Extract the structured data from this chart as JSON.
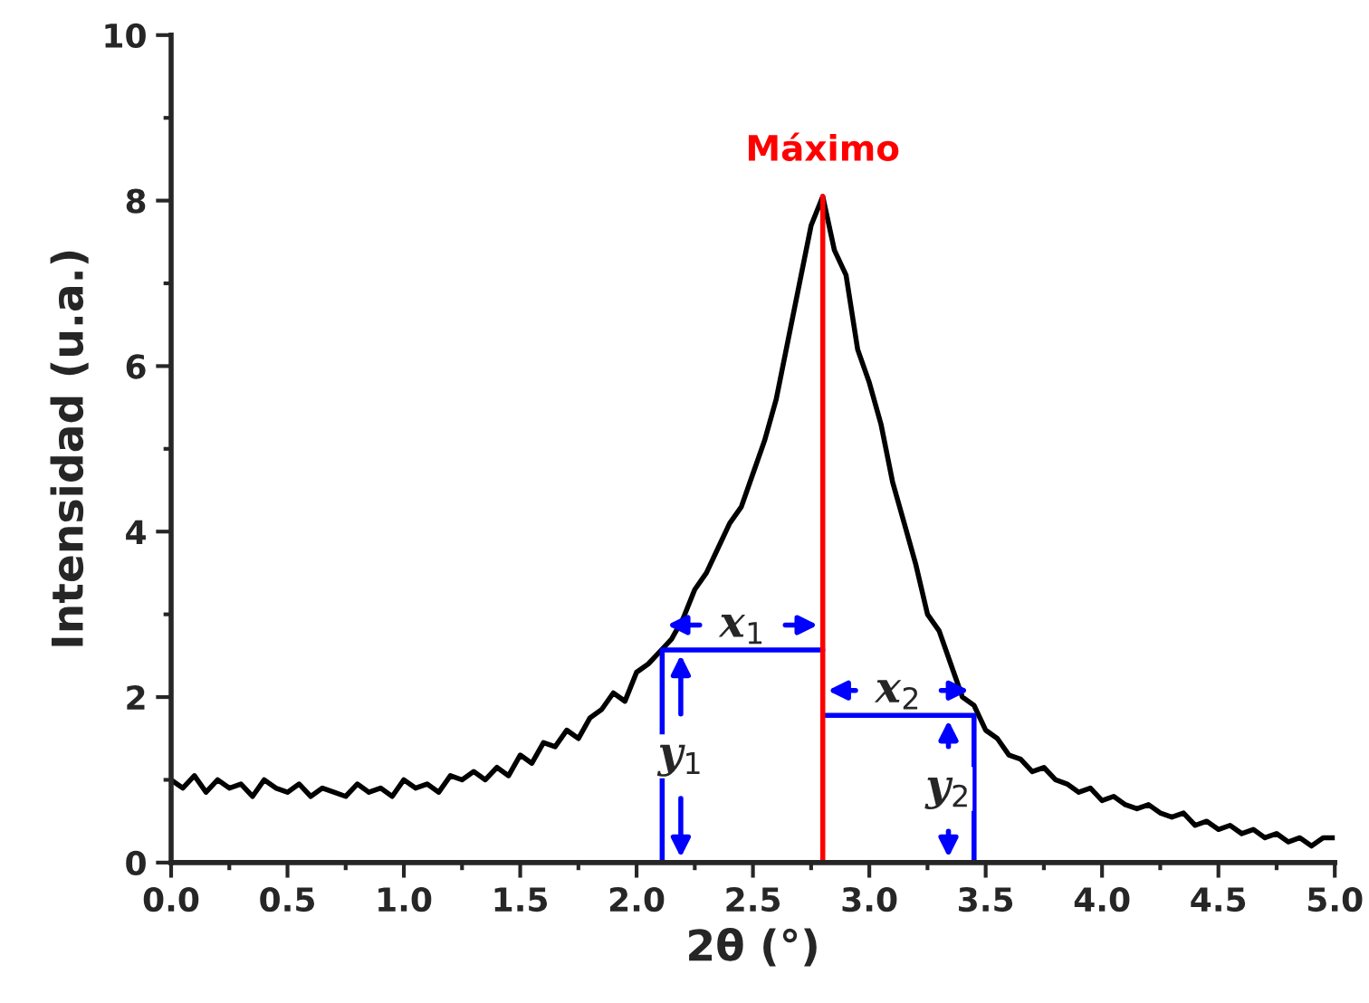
{
  "chart_data": {
    "type": "line",
    "xlabel": "2θ (°)",
    "ylabel": "Intensidad (u.a.)",
    "xlim": [
      0,
      5
    ],
    "ylim": [
      0,
      10
    ],
    "xticks": [
      {
        "value": 0,
        "label": "0.0"
      },
      0.5,
      {
        "value": 1,
        "label": "1.0"
      },
      1.5,
      {
        "value": 2,
        "label": "2.0"
      },
      2.5,
      {
        "value": 3,
        "label": "3.0"
      },
      3.5,
      {
        "value": 4,
        "label": "4.0"
      },
      4.5,
      {
        "value": 5,
        "label": "5.0"
      }
    ],
    "yticks": [
      0,
      2,
      4,
      6,
      8,
      10
    ],
    "grid": false,
    "legend": false,
    "series": [
      {
        "color": "#000000",
        "x": [
          0.0,
          0.05,
          0.1,
          0.15,
          0.2,
          0.25,
          0.3,
          0.35,
          0.4,
          0.45,
          0.5,
          0.55,
          0.6,
          0.65,
          0.7,
          0.75,
          0.8,
          0.85,
          0.9,
          0.95,
          1.0,
          1.05,
          1.1,
          1.15,
          1.2,
          1.25,
          1.3,
          1.35,
          1.4,
          1.45,
          1.5,
          1.55,
          1.6,
          1.65,
          1.7,
          1.75,
          1.8,
          1.85,
          1.9,
          1.95,
          2.0,
          2.05,
          2.1,
          2.15,
          2.2,
          2.25,
          2.3,
          2.35,
          2.4,
          2.45,
          2.5,
          2.55,
          2.6,
          2.65,
          2.7,
          2.75,
          2.8,
          2.85,
          2.9,
          2.95,
          3.0,
          3.05,
          3.1,
          3.15,
          3.2,
          3.25,
          3.3,
          3.35,
          3.4,
          3.45,
          3.5,
          3.55,
          3.6,
          3.65,
          3.7,
          3.75,
          3.8,
          3.85,
          3.9,
          3.95,
          4.0,
          4.05,
          4.1,
          4.15,
          4.2,
          4.25,
          4.3,
          4.35,
          4.4,
          4.45,
          4.5,
          4.55,
          4.6,
          4.65,
          4.7,
          4.75,
          4.8,
          4.85,
          4.9,
          4.95,
          5.0
        ],
        "values": [
          1.0,
          0.9,
          1.05,
          0.85,
          1.0,
          0.9,
          0.95,
          0.8,
          1.0,
          0.9,
          0.85,
          0.95,
          0.8,
          0.9,
          0.85,
          0.8,
          0.95,
          0.85,
          0.9,
          0.8,
          1.0,
          0.9,
          0.95,
          0.85,
          1.05,
          1.0,
          1.1,
          1.0,
          1.15,
          1.05,
          1.3,
          1.2,
          1.45,
          1.4,
          1.6,
          1.5,
          1.75,
          1.85,
          2.05,
          1.95,
          2.3,
          2.4,
          2.55,
          2.7,
          2.95,
          3.3,
          3.5,
          3.8,
          4.1,
          4.3,
          4.7,
          5.1,
          5.6,
          6.3,
          7.0,
          7.7,
          8.05,
          7.4,
          7.1,
          6.2,
          5.8,
          5.3,
          4.6,
          4.1,
          3.6,
          3.0,
          2.8,
          2.4,
          2.0,
          1.9,
          1.6,
          1.5,
          1.3,
          1.25,
          1.1,
          1.15,
          1.0,
          0.95,
          0.85,
          0.9,
          0.75,
          0.8,
          0.7,
          0.65,
          0.7,
          0.6,
          0.55,
          0.6,
          0.45,
          0.5,
          0.4,
          0.45,
          0.35,
          0.4,
          0.3,
          0.35,
          0.25,
          0.3,
          0.2,
          0.3,
          0.3
        ]
      },
      {
        "color": "#0000ff",
        "x": [
          2.11,
          2.11,
          2.8
        ],
        "values": [
          0,
          2.57,
          2.57
        ]
      },
      {
        "color": "#0000ff",
        "x": [
          2.8,
          3.45,
          3.45
        ],
        "values": [
          1.78,
          1.78,
          0
        ]
      },
      {
        "color": "#ff0000",
        "x": [
          2.8,
          2.8
        ],
        "values": [
          0,
          8.05
        ]
      }
    ],
    "annotations": [
      "Máximo",
      "x$_{1}$",
      "y$_{1}$",
      "x$_{2}$",
      "y$_{2}$"
    ]
  }
}
